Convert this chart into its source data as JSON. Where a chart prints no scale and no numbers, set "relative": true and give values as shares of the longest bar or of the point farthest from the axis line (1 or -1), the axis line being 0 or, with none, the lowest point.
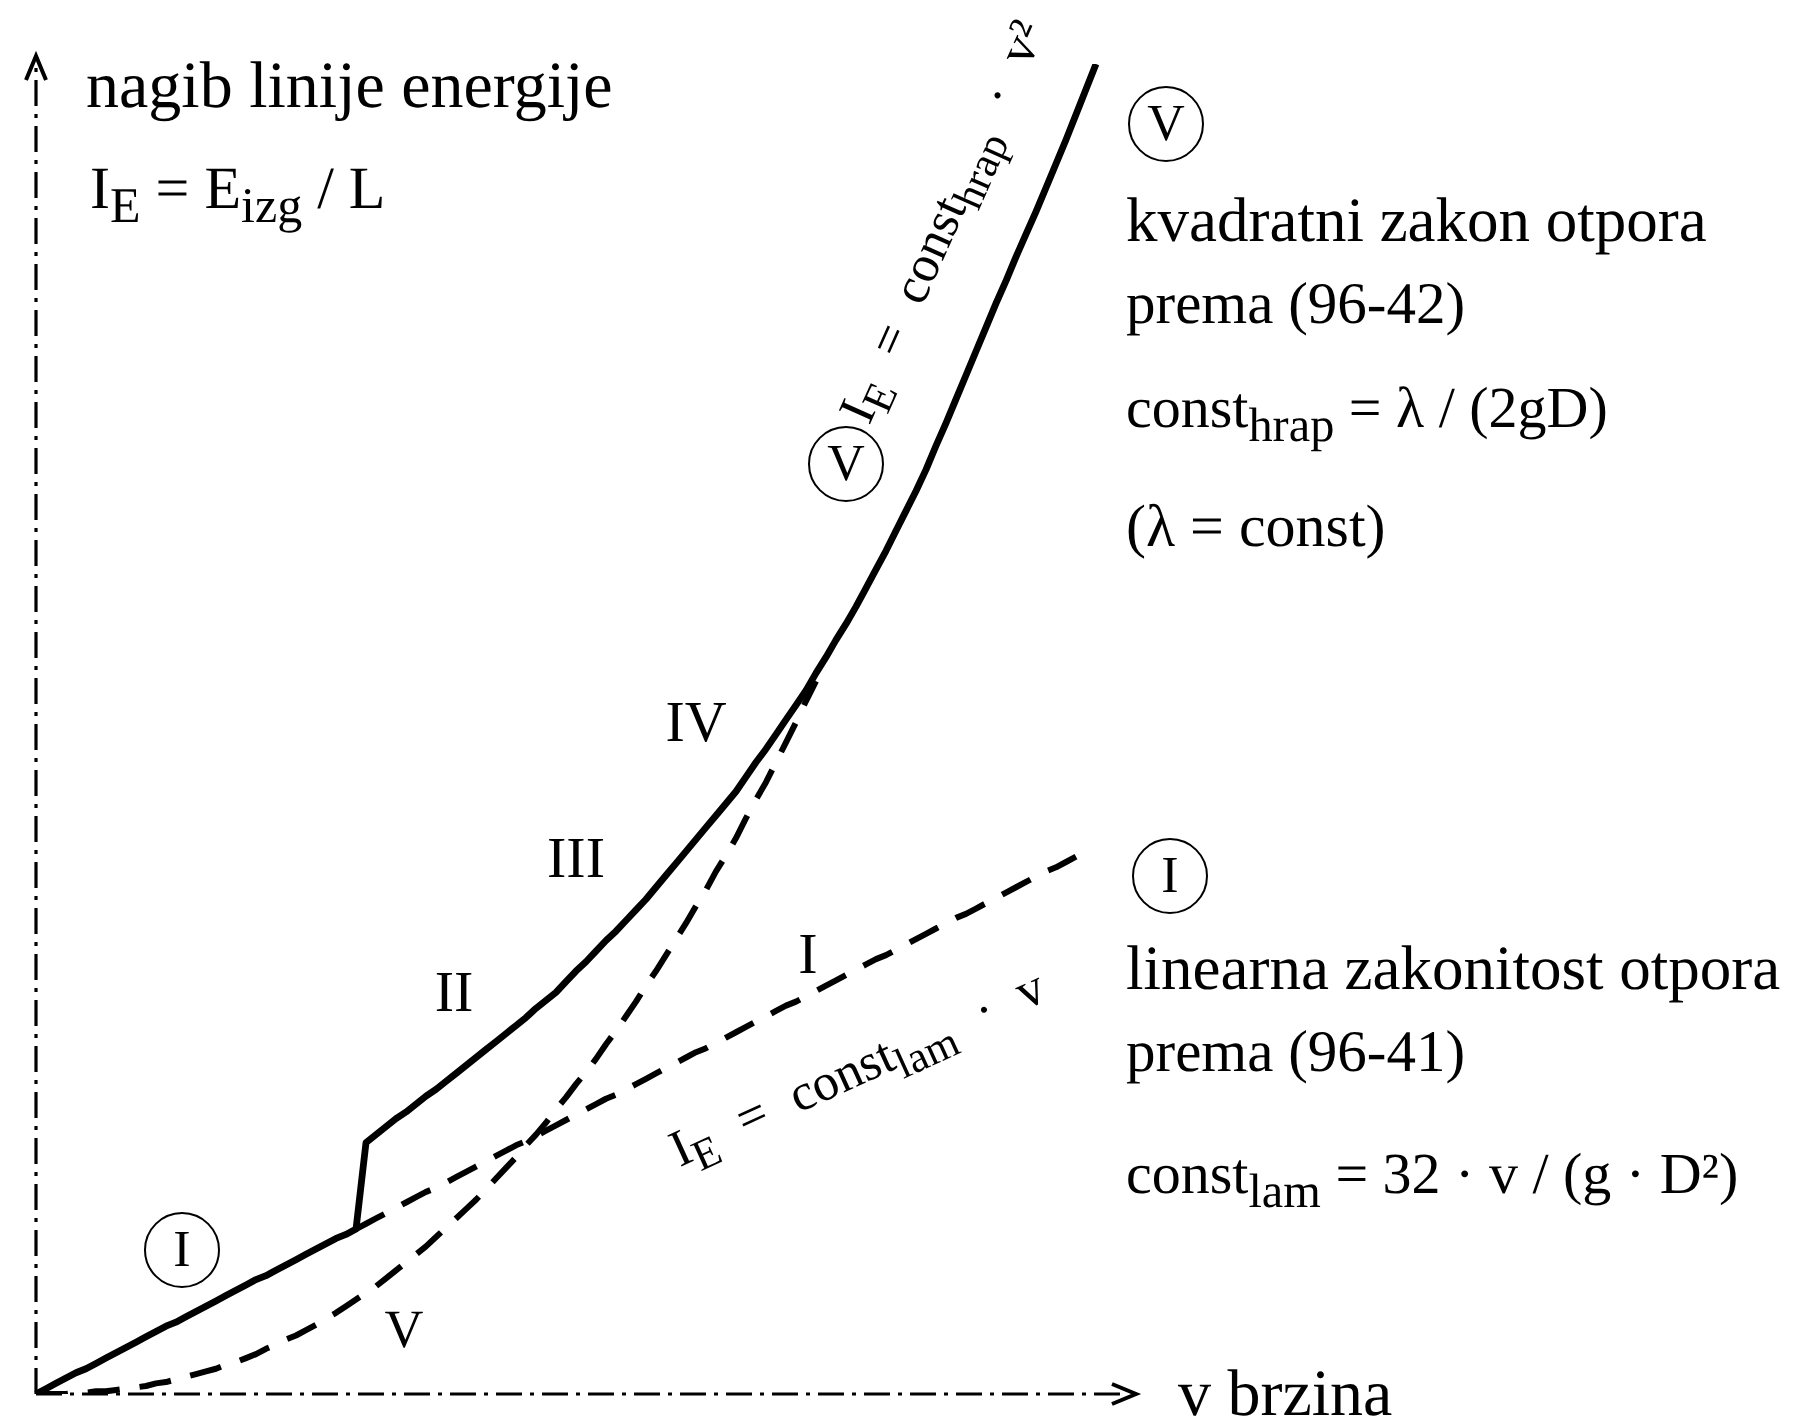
{
  "chart_data": {
    "type": "line",
    "relative": true,
    "marker": "none",
    "ylabel": "nagib linije energije",
    "xlabel": "v brzina",
    "categories": [
      null,
      null,
      null,
      null,
      null,
      null,
      null,
      null,
      null,
      null,
      null,
      null,
      null,
      null,
      null,
      null,
      null,
      null,
      null,
      null,
      null,
      null,
      null,
      null,
      null,
      null,
      null,
      null,
      null,
      null,
      null,
      null,
      null,
      null,
      null,
      null,
      null,
      null,
      null,
      null,
      null,
      null,
      null,
      null,
      null,
      null,
      null,
      null,
      null,
      null,
      null,
      null,
      null,
      null,
      null,
      null,
      null,
      null,
      null,
      null,
      null,
      null,
      null,
      null,
      null,
      null,
      null,
      null,
      null,
      null,
      null,
      null,
      null,
      null,
      null,
      null,
      null,
      null,
      null,
      null,
      null,
      null,
      null,
      null,
      null,
      null,
      null,
      null,
      null,
      null,
      null,
      null,
      null,
      null,
      null,
      null,
      null,
      null,
      null,
      null,
      null,
      null,
      null,
      null,
      null,
      null,
      null,
      null,
      null,
      null,
      null
    ],
    "series": [
      {
        "color": "#000000",
        "line_style": "solid",
        "values": [
          0,
          0.004,
          0.008,
          0.012,
          0.016,
          0.019,
          0.023,
          0.027,
          0.031,
          0.035,
          0.039,
          0.043,
          0.047,
          0.051,
          0.054,
          0.058,
          0.062,
          0.066,
          0.07,
          0.074,
          0.078,
          0.082,
          0.086,
          0.089,
          0.093,
          0.097,
          0.101,
          0.105,
          0.109,
          0.113,
          0.117,
          0.12,
          0.124,
          0.189,
          0.195,
          0.201,
          0.207,
          0.212,
          0.218,
          0.224,
          0.229,
          0.235,
          0.241,
          0.247,
          0.253,
          0.259,
          0.265,
          0.271,
          0.277,
          0.283,
          0.29,
          0.296,
          0.302,
          0.31,
          0.318,
          0.325,
          0.333,
          0.341,
          0.348,
          0.356,
          0.364,
          0.372,
          0.381,
          0.39,
          0.399,
          0.408,
          0.417,
          0.426,
          0.435,
          0.444,
          0.453,
          0.464,
          0.475,
          0.485,
          0.496,
          0.507,
          0.518,
          0.529,
          0.542,
          0.554,
          0.567,
          0.579,
          0.592,
          0.606,
          0.62,
          0.634,
          0.649,
          0.664,
          0.679,
          0.695,
          0.713,
          0.73,
          0.748,
          0.766,
          0.784,
          0.802,
          0.82,
          0.837,
          0.855,
          0.872,
          0.889,
          0.907,
          0.925,
          0.943,
          0.962,
          0.981,
          1,
          null,
          null,
          null,
          null
        ]
      },
      {
        "color": "#000000",
        "line_style": "dashed",
        "values": [
          null,
          null,
          null,
          null,
          null,
          null,
          null,
          null,
          null,
          null,
          null,
          null,
          null,
          null,
          null,
          null,
          null,
          null,
          null,
          null,
          null,
          null,
          null,
          null,
          null,
          null,
          null,
          null,
          null,
          null,
          null,
          null,
          0.124,
          0.128,
          0.132,
          0.136,
          0.14,
          0.144,
          0.148,
          0.152,
          0.155,
          0.159,
          0.163,
          0.167,
          0.171,
          0.175,
          0.179,
          0.183,
          0.187,
          0.19,
          0.194,
          0.198,
          0.202,
          0.206,
          0.21,
          0.214,
          0.218,
          0.222,
          0.225,
          0.229,
          0.233,
          0.237,
          0.241,
          0.245,
          0.249,
          0.253,
          0.257,
          0.26,
          0.264,
          0.268,
          0.272,
          0.276,
          0.28,
          0.284,
          0.288,
          0.292,
          0.295,
          0.299,
          0.303,
          0.307,
          0.311,
          0.315,
          0.319,
          0.323,
          0.327,
          0.33,
          0.334,
          0.338,
          0.342,
          0.346,
          0.35,
          0.354,
          0.358,
          0.361,
          0.365,
          0.369,
          0.373,
          0.377,
          0.381,
          0.385,
          0.389,
          0.393,
          0.396,
          0.4,
          0.404,
          null,
          null,
          null,
          null,
          null,
          null
        ]
      },
      {
        "color": "#000000",
        "line_style": "dashed",
        "values": [
          0,
          0,
          0,
          0,
          0.001,
          0.001,
          0.002,
          0.002,
          0.003,
          0.004,
          0.005,
          0.006,
          0.008,
          0.009,
          0.011,
          0.013,
          0.015,
          0.017,
          0.019,
          0.022,
          0.024,
          0.027,
          0.03,
          0.034,
          0.037,
          0.041,
          0.044,
          0.048,
          0.052,
          0.057,
          0.061,
          0.066,
          0.071,
          0.076,
          0.081,
          0.087,
          0.093,
          0.099,
          0.105,
          0.111,
          0.118,
          0.125,
          0.132,
          0.139,
          0.146,
          0.154,
          0.162,
          0.17,
          0.178,
          0.187,
          0.195,
          0.204,
          0.214,
          0.223,
          0.233,
          0.242,
          0.252,
          0.263,
          0.273,
          0.284,
          0.295,
          0.307,
          0.318,
          0.33,
          0.342,
          0.354,
          0.367,
          0.379,
          0.393,
          0.405,
          0.418,
          0.433,
          0.447,
          0.46,
          0.475,
          0.49,
          0.505,
          0.521,
          0.536,
          null,
          null,
          null,
          null,
          null,
          null,
          null,
          null,
          null,
          null,
          null,
          null,
          null,
          null,
          null,
          null,
          null,
          null,
          null,
          null,
          null,
          null,
          null,
          null,
          null,
          null,
          null,
          null,
          null,
          null,
          null,
          null
        ]
      }
    ],
    "annotations": [
      "I$_{E}$ = E$_{izg}$ / L",
      "V",
      "kvadratni zakon otpora",
      "prema (96-42)",
      "const$_{hrap}$ = λ / (2gD)",
      "(λ = const)",
      "I",
      "linearna zakonitost otpora",
      "prema (96-41)",
      "const$_{lam}$ = 32 · v / (g · D²)",
      "V",
      "I$_{E}$ = const$_{hrap}$ · v²",
      "IV",
      "III",
      "II",
      "I",
      "V",
      "I",
      "I$_{E}$ = const$_{lam}$ · v"
    ]
  }
}
